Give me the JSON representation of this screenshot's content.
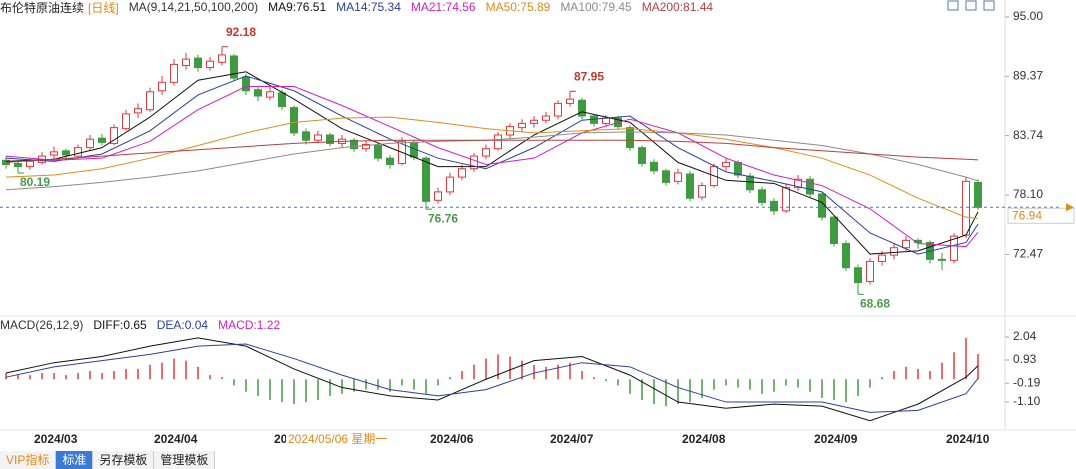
{
  "chart_data": [
    {
      "type": "candlestick",
      "title": "布伦特原油连续",
      "period": "[日线]",
      "indicator": "MA(9,14,21,50,100,200)",
      "up_color": "#e03a3a",
      "down_color": "#3f9b3f",
      "ylim": [
        67.0,
        96.6
      ],
      "yticks": [
        72.47,
        78.1,
        83.74,
        89.37,
        95.0
      ],
      "yticks_labels": [
        "72.47",
        "78.10",
        "83.74",
        "89.37",
        "95.00"
      ],
      "categories": [
        null,
        null,
        null,
        null,
        "2024/03",
        null,
        null,
        null,
        null,
        null,
        null,
        null,
        null,
        null,
        "2024/04",
        null,
        null,
        null,
        null,
        null,
        null,
        null,
        null,
        null,
        "20",
        null,
        null,
        null,
        null,
        null,
        null,
        null,
        null,
        null,
        null,
        null,
        null,
        "2024/06",
        null,
        null,
        null,
        null,
        null,
        null,
        null,
        null,
        null,
        "2024/07",
        null,
        null,
        null,
        null,
        null,
        null,
        null,
        null,
        null,
        null,
        "2024/08",
        null,
        null,
        null,
        null,
        null,
        null,
        null,
        null,
        null,
        null,
        "2024/09",
        null,
        null,
        null,
        null,
        null,
        null,
        null,
        null,
        null,
        null,
        "2024/10",
        null
      ],
      "crosshair_label": "2024/05/06 星期一",
      "candles": [
        [
          81.4,
          81.8,
          80.6,
          81.0
        ],
        [
          81.1,
          81.4,
          80.19,
          80.8
        ],
        [
          80.8,
          81.6,
          80.5,
          81.3
        ],
        [
          81.2,
          82.2,
          81.0,
          81.8
        ],
        [
          81.9,
          82.7,
          81.5,
          82.2
        ],
        [
          82.3,
          82.5,
          81.4,
          81.9
        ],
        [
          81.8,
          82.9,
          81.6,
          82.6
        ],
        [
          82.6,
          83.8,
          82.4,
          83.4
        ],
        [
          83.5,
          83.9,
          82.8,
          83.1
        ],
        [
          83.0,
          84.8,
          82.8,
          84.5
        ],
        [
          84.4,
          86.2,
          84.2,
          85.8
        ],
        [
          85.9,
          86.8,
          85.4,
          86.3
        ],
        [
          86.2,
          88.3,
          86.0,
          87.9
        ],
        [
          88.0,
          89.4,
          87.6,
          88.8
        ],
        [
          88.8,
          91.0,
          88.5,
          90.5
        ],
        [
          90.4,
          91.6,
          90.0,
          91.0
        ],
        [
          91.1,
          91.4,
          89.8,
          90.2
        ],
        [
          90.2,
          91.2,
          89.9,
          90.8
        ],
        [
          90.7,
          92.18,
          90.4,
          91.4
        ],
        [
          91.3,
          91.5,
          88.9,
          89.2
        ],
        [
          89.3,
          89.6,
          87.6,
          88.0
        ],
        [
          88.1,
          88.4,
          87.0,
          87.5
        ],
        [
          87.4,
          88.4,
          87.1,
          87.9
        ],
        [
          87.8,
          88.1,
          86.2,
          86.5
        ],
        [
          86.4,
          86.6,
          83.7,
          84.0
        ],
        [
          84.1,
          84.4,
          82.9,
          83.3
        ],
        [
          83.3,
          84.2,
          83.0,
          83.8
        ],
        [
          83.8,
          84.0,
          82.7,
          83.0
        ],
        [
          83.0,
          83.8,
          82.6,
          83.4
        ],
        [
          83.3,
          83.5,
          82.2,
          82.5
        ],
        [
          82.5,
          83.3,
          82.2,
          82.9
        ],
        [
          82.8,
          83.0,
          81.3,
          81.6
        ],
        [
          81.6,
          81.9,
          80.6,
          81.0
        ],
        [
          81.1,
          83.6,
          80.9,
          83.2
        ],
        [
          83.1,
          83.3,
          81.4,
          81.7
        ],
        [
          81.6,
          81.8,
          76.76,
          77.5
        ],
        [
          77.6,
          78.8,
          77.3,
          78.4
        ],
        [
          78.4,
          80.2,
          78.1,
          79.8
        ],
        [
          79.8,
          81.0,
          79.5,
          80.6
        ],
        [
          80.6,
          82.1,
          80.3,
          81.8
        ],
        [
          81.8,
          82.9,
          81.5,
          82.5
        ],
        [
          82.5,
          84.1,
          82.3,
          83.8
        ],
        [
          83.8,
          84.9,
          83.4,
          84.6
        ],
        [
          84.5,
          85.3,
          84.1,
          84.9
        ],
        [
          84.9,
          85.6,
          84.5,
          85.2
        ],
        [
          85.2,
          86.0,
          84.9,
          85.6
        ],
        [
          85.6,
          87.1,
          85.3,
          86.8
        ],
        [
          86.8,
          87.95,
          86.5,
          87.2
        ],
        [
          87.1,
          87.3,
          85.3,
          85.6
        ],
        [
          85.6,
          85.8,
          84.6,
          84.9
        ],
        [
          84.9,
          85.7,
          84.6,
          85.4
        ],
        [
          85.4,
          85.6,
          84.3,
          84.6
        ],
        [
          84.5,
          84.7,
          82.3,
          82.6
        ],
        [
          82.6,
          82.8,
          80.8,
          81.1
        ],
        [
          81.2,
          81.5,
          80.1,
          80.4
        ],
        [
          80.4,
          80.6,
          79.0,
          79.3
        ],
        [
          79.4,
          80.6,
          79.1,
          80.2
        ],
        [
          80.1,
          80.4,
          77.5,
          77.8
        ],
        [
          77.9,
          79.3,
          77.6,
          79.0
        ],
        [
          79.0,
          81.1,
          78.8,
          80.8
        ],
        [
          80.8,
          81.6,
          80.4,
          81.2
        ],
        [
          81.2,
          81.4,
          79.7,
          80.0
        ],
        [
          79.9,
          80.2,
          78.3,
          78.6
        ],
        [
          78.6,
          78.9,
          77.1,
          77.4
        ],
        [
          77.5,
          77.8,
          76.2,
          76.6
        ],
        [
          76.6,
          79.1,
          76.4,
          78.8
        ],
        [
          78.8,
          80.0,
          78.5,
          79.6
        ],
        [
          79.6,
          79.9,
          77.9,
          78.2
        ],
        [
          78.2,
          78.4,
          75.7,
          76.0
        ],
        [
          76.0,
          76.2,
          73.2,
          73.5
        ],
        [
          73.5,
          73.8,
          70.9,
          71.2
        ],
        [
          71.2,
          71.5,
          68.68,
          69.8
        ],
        [
          69.9,
          72.1,
          69.6,
          71.8
        ],
        [
          71.8,
          72.8,
          71.4,
          72.4
        ],
        [
          72.4,
          73.5,
          72.0,
          73.1
        ],
        [
          73.1,
          74.2,
          72.8,
          73.8
        ],
        [
          73.8,
          74.0,
          73.0,
          73.6
        ],
        [
          73.6,
          73.8,
          71.6,
          72.0
        ],
        [
          72.0,
          72.6,
          71.0,
          71.9
        ],
        [
          71.9,
          74.5,
          71.6,
          74.2
        ],
        [
          74.3,
          79.8,
          74.0,
          79.4
        ],
        [
          79.3,
          79.6,
          76.7,
          76.94
        ]
      ],
      "series": [
        {
          "name": "MA9:76.51",
          "color": "#111111",
          "x": [
            0,
            4,
            8,
            12,
            16,
            20,
            24,
            28,
            32,
            36,
            40,
            44,
            48,
            52,
            56,
            60,
            64,
            68,
            72,
            76,
            80,
            81
          ],
          "values": [
            81.3,
            81.5,
            82.6,
            85.5,
            89.0,
            89.8,
            87.2,
            84.4,
            82.6,
            80.8,
            80.8,
            83.8,
            86.0,
            85.0,
            81.2,
            79.5,
            79.2,
            77.4,
            72.5,
            72.8,
            74.3,
            76.51
          ]
        },
        {
          "name": "MA14:75.34",
          "color": "#2b3f9e",
          "x": [
            0,
            4,
            8,
            12,
            16,
            20,
            24,
            28,
            32,
            36,
            40,
            44,
            48,
            52,
            56,
            60,
            64,
            68,
            72,
            76,
            80,
            81
          ],
          "values": [
            81.6,
            81.3,
            82.0,
            84.2,
            87.6,
            89.4,
            88.0,
            85.6,
            83.4,
            81.6,
            80.6,
            82.6,
            85.2,
            85.6,
            82.6,
            80.3,
            79.4,
            78.4,
            74.5,
            72.5,
            73.6,
            75.34
          ]
        },
        {
          "name": "MA21:74.56",
          "color": "#d21fc4",
          "x": [
            0,
            4,
            8,
            12,
            16,
            20,
            24,
            28,
            32,
            36,
            40,
            44,
            48,
            52,
            56,
            60,
            64,
            68,
            72,
            76,
            80,
            81
          ],
          "values": [
            81.8,
            81.4,
            81.6,
            83.2,
            86.2,
            88.4,
            88.4,
            86.6,
            84.6,
            82.6,
            81.0,
            81.6,
            84.0,
            85.3,
            84.0,
            81.6,
            80.0,
            79.0,
            76.8,
            73.5,
            73.2,
            74.56
          ]
        },
        {
          "name": "MA50:75.89",
          "color": "#e08a1e",
          "x": [
            0,
            4,
            8,
            12,
            16,
            20,
            24,
            28,
            32,
            36,
            40,
            44,
            48,
            52,
            56,
            60,
            64,
            68,
            72,
            76,
            80,
            81
          ],
          "values": [
            79.8,
            80.0,
            80.6,
            81.6,
            82.8,
            84.0,
            85.0,
            85.4,
            85.5,
            85.0,
            84.4,
            84.0,
            84.2,
            84.4,
            84.0,
            83.4,
            82.6,
            81.6,
            80.0,
            77.8,
            76.0,
            75.89
          ]
        },
        {
          "name": "MA100:79.45",
          "color": "#8c8c8c",
          "x": [
            0,
            4,
            8,
            12,
            16,
            20,
            24,
            28,
            32,
            36,
            40,
            44,
            48,
            52,
            56,
            60,
            64,
            68,
            72,
            76,
            80,
            81
          ],
          "values": [
            78.6,
            78.9,
            79.3,
            79.8,
            80.4,
            81.2,
            82.0,
            82.6,
            83.0,
            83.2,
            83.3,
            83.6,
            84.0,
            84.1,
            84.0,
            83.8,
            83.3,
            82.8,
            82.0,
            81.0,
            79.8,
            79.45
          ]
        },
        {
          "name": "MA200:81.44",
          "color": "#b54040",
          "x": [
            0,
            4,
            8,
            12,
            16,
            20,
            24,
            28,
            32,
            36,
            40,
            44,
            48,
            52,
            56,
            60,
            64,
            68,
            72,
            76,
            80,
            81
          ],
          "values": [
            81.2,
            81.5,
            81.8,
            82.1,
            82.4,
            82.7,
            83.0,
            83.2,
            83.3,
            83.3,
            83.3,
            83.3,
            83.3,
            83.3,
            83.2,
            83.0,
            82.6,
            82.3,
            82.0,
            81.7,
            81.5,
            81.44
          ]
        }
      ]
    },
    {
      "type": "macd",
      "title": "MACD(26,12,9)",
      "up_color": "#e03a3a",
      "down_color": "#3f9b3f",
      "ylim": [
        -2.45,
        2.62
      ],
      "yticks": [
        2.04,
        0.93,
        -0.19,
        -1.1
      ],
      "yticks_labels": [
        "2.04",
        "0.93",
        "-0.19",
        "-1.10"
      ],
      "values": [
        0.3,
        0.2,
        0.2,
        0.3,
        0.3,
        0.2,
        0.3,
        0.4,
        0.3,
        0.4,
        0.5,
        0.5,
        0.7,
        0.8,
        1.0,
        0.9,
        0.6,
        0.2,
        0.1,
        -0.3,
        -0.6,
        -0.8,
        -1.0,
        -1.1,
        -1.2,
        -1.1,
        -1.0,
        -0.8,
        -0.7,
        -0.6,
        -0.5,
        -0.5,
        -0.6,
        -0.3,
        -0.5,
        -0.7,
        -0.3,
        0.1,
        0.4,
        0.7,
        1.0,
        1.2,
        1.1,
        0.9,
        0.7,
        0.6,
        0.7,
        0.8,
        0.4,
        0.1,
        -0.1,
        -0.3,
        -0.7,
        -1.0,
        -1.2,
        -1.3,
        -1.2,
        -1.1,
        -0.9,
        -0.5,
        -0.3,
        -0.4,
        -0.5,
        -0.7,
        -0.6,
        -0.3,
        -0.4,
        -0.6,
        -0.9,
        -1.0,
        -1.1,
        -0.8,
        -0.4,
        0.1,
        0.4,
        0.6,
        0.5,
        0.4,
        0.8,
        1.3,
        2.0,
        1.22
      ],
      "series": [
        {
          "name": "DIFF:0.65",
          "color": "#111111",
          "x": [
            0,
            4,
            8,
            12,
            16,
            20,
            24,
            28,
            32,
            36,
            40,
            44,
            48,
            52,
            56,
            60,
            64,
            68,
            72,
            76,
            80,
            81
          ],
          "values": [
            0.3,
            0.8,
            1.1,
            1.6,
            2.0,
            1.6,
            0.5,
            -0.4,
            -0.8,
            -1.0,
            0.0,
            0.9,
            1.1,
            0.2,
            -1.1,
            -1.4,
            -1.2,
            -1.3,
            -2.0,
            -1.2,
            0.1,
            0.65
          ]
        },
        {
          "name": "DEA:0.04",
          "color": "#2b3f9e",
          "x": [
            0,
            4,
            8,
            12,
            16,
            20,
            24,
            28,
            32,
            36,
            40,
            44,
            48,
            52,
            56,
            60,
            64,
            68,
            72,
            76,
            80,
            81
          ],
          "values": [
            0.1,
            0.6,
            0.9,
            1.2,
            1.6,
            1.7,
            1.0,
            0.2,
            -0.5,
            -0.8,
            -0.5,
            0.3,
            0.8,
            0.6,
            -0.4,
            -1.1,
            -1.1,
            -1.1,
            -1.6,
            -1.5,
            -0.7,
            0.04
          ]
        }
      ],
      "histogram_label": "MACD:1.22",
      "histogram_color": "#d21fc4"
    }
  ],
  "toolbar": {
    "tabs": [
      "VIP指标",
      "标准",
      "另存模板",
      "管理模板"
    ]
  }
}
